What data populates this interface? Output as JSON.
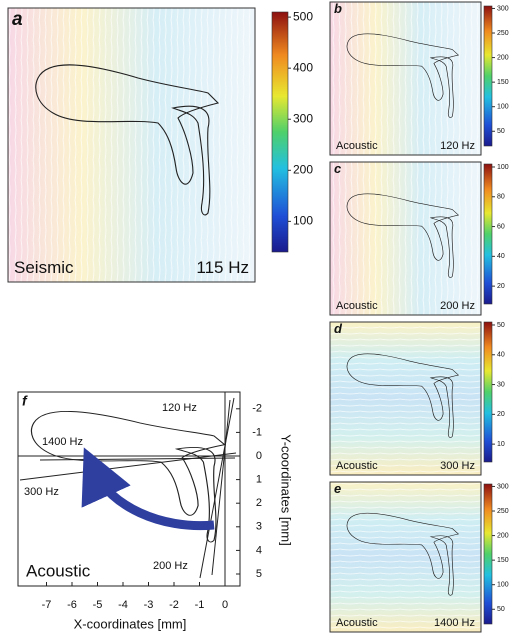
{
  "panels": [
    {
      "letter": "a",
      "method": "Seismic",
      "frequency": "115 Hz",
      "colorbar_ticks": [
        500,
        400,
        300,
        200,
        100
      ]
    },
    {
      "letter": "b",
      "method": "Acoustic",
      "frequency": "120 Hz",
      "colorbar_ticks": [
        300,
        250,
        200,
        150,
        100,
        50
      ]
    },
    {
      "letter": "c",
      "method": "Acoustic",
      "frequency": "200 Hz",
      "colorbar_ticks": [
        100,
        80,
        60,
        40,
        20
      ]
    },
    {
      "letter": "d",
      "method": "Acoustic",
      "frequency": "300 Hz",
      "colorbar_ticks": [
        50,
        40,
        30,
        20,
        10
      ]
    },
    {
      "letter": "e",
      "method": "Acoustic",
      "frequency": "1400 Hz",
      "colorbar_ticks": [
        300,
        250,
        200,
        150,
        100,
        50
      ]
    }
  ],
  "panel_f": {
    "letter": "f",
    "method": "Acoustic",
    "x_label": "X-coordinates [mm]",
    "y_label": "Y-coordinates [mm]",
    "xticks": [
      -7,
      -6,
      -5,
      -4,
      -3,
      -2,
      -1,
      0
    ],
    "yticks": [
      -2,
      -1,
      0,
      1,
      2,
      3,
      4,
      5
    ],
    "line_labels": [
      "120 Hz",
      "1400 Hz",
      "300 Hz",
      "200 Hz"
    ]
  }
}
